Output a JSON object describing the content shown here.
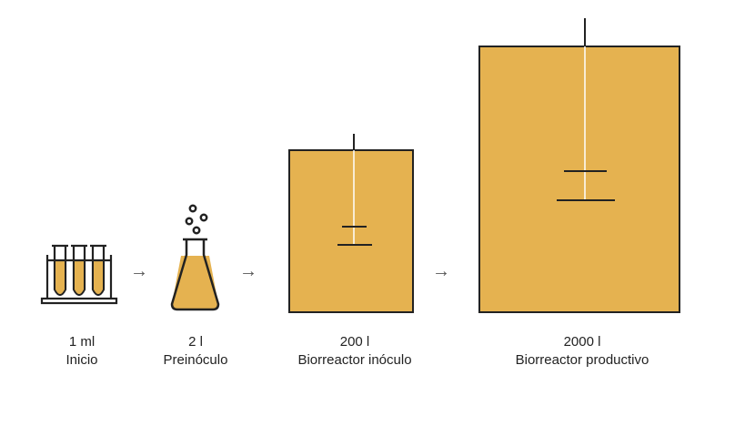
{
  "colors": {
    "fill": "#E5B250",
    "stroke": "#222222",
    "arrow": "#555555"
  },
  "stages": [
    {
      "volume": "1 ml",
      "name": "Inicio",
      "icon": "test-tubes-icon"
    },
    {
      "volume": "2 l",
      "name": "Preinóculo",
      "icon": "flask-icon"
    },
    {
      "volume": "200 l",
      "name": "Biorreactor inóculo",
      "icon": "bioreactor-small-icon"
    },
    {
      "volume": "2000 l",
      "name": "Biorreactor productivo",
      "icon": "bioreactor-large-icon"
    }
  ],
  "arrows": [
    "→",
    "→",
    "→"
  ]
}
